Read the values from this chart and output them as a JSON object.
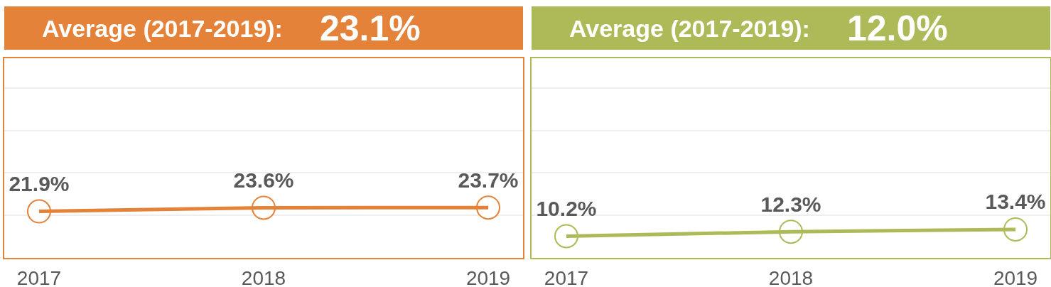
{
  "chart_data": [
    {
      "type": "line",
      "title": "Average (2017-2019):",
      "subtitle": "23.1%",
      "categories": [
        "2017",
        "2018",
        "2019"
      ],
      "series": [
        {
          "color": "#e4823a",
          "values": [
            21.9,
            23.6,
            23.7
          ],
          "value_labels": [
            "21.9%",
            "23.6%",
            "23.7%"
          ]
        }
      ],
      "ylim": [
        0,
        94
      ],
      "tick_labels": "x",
      "grid": "y",
      "marker": "circle",
      "line_style": "solid"
    },
    {
      "type": "line",
      "title": "Average (2017-2019):",
      "subtitle": "12.0%",
      "categories": [
        "2017",
        "2018",
        "2019"
      ],
      "series": [
        {
          "color": "#adba57",
          "values": [
            10.2,
            12.3,
            13.4
          ],
          "value_labels": [
            "10.2%",
            "12.3%",
            "13.4%"
          ]
        }
      ],
      "ylim": [
        0,
        94
      ],
      "tick_labels": "x",
      "grid": "y",
      "marker": "circle",
      "line_style": "solid"
    }
  ]
}
